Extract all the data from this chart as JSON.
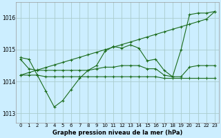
{
  "background_color": "#cceeff",
  "grid_color": "#aacccc",
  "line_color": "#1a6b1a",
  "title": "Graphe pression niveau de la mer (hPa)",
  "xlim": [
    -0.5,
    23.5
  ],
  "ylim": [
    1012.7,
    1016.5
  ],
  "yticks": [
    1013,
    1014,
    1015,
    1016
  ],
  "xticks": [
    0,
    1,
    2,
    3,
    4,
    5,
    6,
    7,
    8,
    9,
    10,
    11,
    12,
    13,
    14,
    15,
    16,
    17,
    18,
    19,
    20,
    21,
    22,
    23
  ],
  "series": [
    {
      "x": [
        0,
        1,
        2,
        3,
        4,
        5,
        6,
        7,
        8,
        9,
        10,
        11,
        12,
        13,
        14,
        15,
        16,
        17,
        18,
        19,
        20,
        21,
        22,
        23
      ],
      "y": [
        1014.75,
        1014.7,
        1014.2,
        1013.7,
        1013.2,
        1013.4,
        1013.75,
        1014.1,
        1014.35,
        1014.5,
        1014.95,
        1015.1,
        1015.05,
        1015.15,
        1015.05,
        1014.65,
        1014.7,
        1014.35,
        1014.15,
        1015.0,
        1016.1,
        1016.15,
        1016.15,
        1016.2
      ]
    },
    {
      "x": [
        0,
        1,
        2,
        3,
        4,
        5,
        6,
        7,
        8,
        9,
        10,
        11,
        12,
        13,
        14,
        15,
        16,
        17,
        18,
        19,
        20,
        21,
        22,
        23
      ],
      "y": [
        1014.2,
        1014.28,
        1014.36,
        1014.44,
        1014.52,
        1014.6,
        1014.68,
        1014.76,
        1014.84,
        1014.92,
        1015.0,
        1015.08,
        1015.16,
        1015.24,
        1015.32,
        1015.4,
        1015.48,
        1015.56,
        1015.64,
        1015.72,
        1015.8,
        1015.88,
        1015.96,
        1016.2
      ]
    },
    {
      "x": [
        0,
        1,
        2,
        3,
        4,
        5,
        6,
        7,
        8,
        9,
        10,
        11,
        12,
        13,
        14,
        15,
        16,
        17,
        18,
        19,
        20,
        21,
        22,
        23
      ],
      "y": [
        1014.2,
        1014.2,
        1014.2,
        1014.15,
        1014.15,
        1014.15,
        1014.15,
        1014.15,
        1014.15,
        1014.15,
        1014.15,
        1014.15,
        1014.15,
        1014.15,
        1014.15,
        1014.15,
        1014.15,
        1014.1,
        1014.1,
        1014.1,
        1014.1,
        1014.1,
        1014.1,
        1014.1
      ]
    },
    {
      "x": [
        0,
        1,
        2,
        3,
        4,
        5,
        6,
        7,
        8,
        9,
        10,
        11,
        12,
        13,
        14,
        15,
        16,
        17,
        18,
        19,
        20,
        21,
        22,
        23
      ],
      "y": [
        1014.7,
        1014.4,
        1014.35,
        1014.35,
        1014.35,
        1014.35,
        1014.35,
        1014.35,
        1014.35,
        1014.4,
        1014.45,
        1014.45,
        1014.5,
        1014.5,
        1014.5,
        1014.4,
        1014.4,
        1014.2,
        1014.15,
        1014.15,
        1014.45,
        1014.5,
        1014.5,
        1014.5
      ]
    }
  ]
}
